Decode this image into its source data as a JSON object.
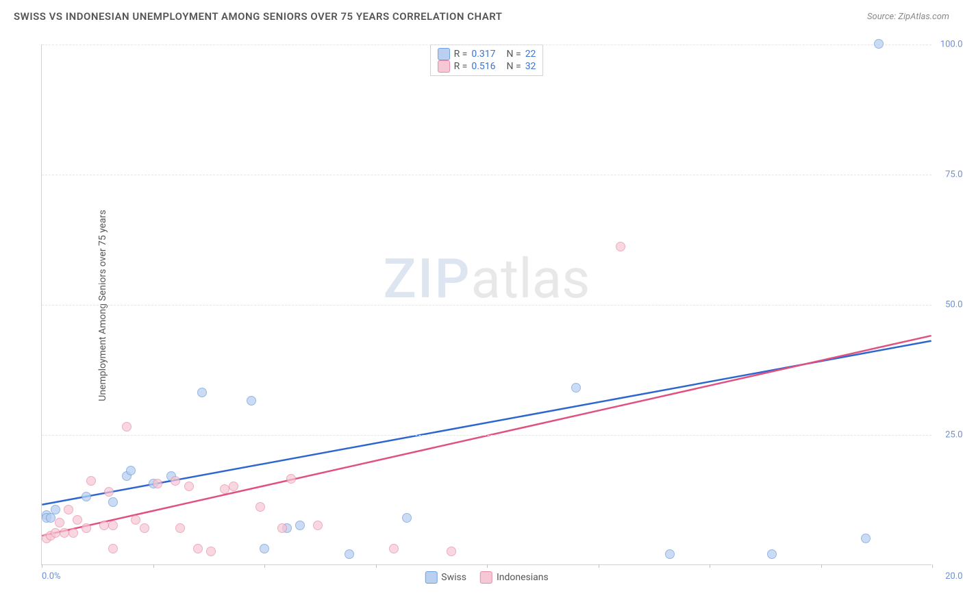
{
  "header": {
    "title": "SWISS VS INDONESIAN UNEMPLOYMENT AMONG SENIORS OVER 75 YEARS CORRELATION CHART",
    "source": "Source: ZipAtlas.com"
  },
  "watermark": {
    "part1": "ZIP",
    "part2": "atlas"
  },
  "chart": {
    "type": "scatter",
    "y_axis_label": "Unemployment Among Seniors over 75 years",
    "label_fontsize": 14,
    "background_color": "#ffffff",
    "grid_color": "#e5e5e5",
    "axis_color": "#d0d0d0",
    "tick_label_color": "#6a8fd8",
    "xlim": [
      0,
      20
    ],
    "ylim": [
      0,
      100
    ],
    "x_ticks": [
      0,
      2.5,
      5,
      7.5,
      10,
      12.5,
      15,
      17.5,
      20
    ],
    "x_tick_labels": {
      "0": "0.0%",
      "20": "20.0%"
    },
    "y_ticks": [
      25,
      50,
      75,
      100
    ],
    "y_tick_labels": {
      "25": "25.0%",
      "50": "50.0%",
      "75": "75.0%",
      "100": "100.0%"
    },
    "series": [
      {
        "name": "Swiss",
        "fill_color": "#b9d0f0",
        "stroke_color": "#6f9fe0",
        "line_color": "#2e66d0",
        "marker_radius": 7,
        "marker_opacity": 0.75,
        "stats": {
          "R": "0.317",
          "N": "22"
        },
        "trend": {
          "x1": 0,
          "y1": 11.5,
          "x2": 20,
          "y2": 43
        },
        "points": [
          {
            "x": 0.1,
            "y": 9.5
          },
          {
            "x": 0.1,
            "y": 9.0
          },
          {
            "x": 0.2,
            "y": 9.0
          },
          {
            "x": 0.3,
            "y": 10.5
          },
          {
            "x": 1.0,
            "y": 13.0
          },
          {
            "x": 1.6,
            "y": 12.0
          },
          {
            "x": 1.9,
            "y": 17.0
          },
          {
            "x": 2.0,
            "y": 18.0
          },
          {
            "x": 2.5,
            "y": 15.5
          },
          {
            "x": 2.9,
            "y": 17.0
          },
          {
            "x": 3.6,
            "y": 33.0
          },
          {
            "x": 4.7,
            "y": 31.5
          },
          {
            "x": 5.0,
            "y": 3.0
          },
          {
            "x": 5.5,
            "y": 7.0
          },
          {
            "x": 5.8,
            "y": 7.5
          },
          {
            "x": 6.9,
            "y": 2.0
          },
          {
            "x": 8.2,
            "y": 9.0
          },
          {
            "x": 12.0,
            "y": 34.0
          },
          {
            "x": 14.1,
            "y": 2.0
          },
          {
            "x": 16.4,
            "y": 2.0
          },
          {
            "x": 18.5,
            "y": 5.0
          },
          {
            "x": 18.8,
            "y": 100.0
          }
        ]
      },
      {
        "name": "Indonesians",
        "fill_color": "#f6c7d4",
        "stroke_color": "#e88aa5",
        "line_color": "#e05080",
        "marker_radius": 7,
        "marker_opacity": 0.7,
        "stats": {
          "R": "0.516",
          "N": "32"
        },
        "trend": {
          "x1": 0,
          "y1": 5.5,
          "x2": 20,
          "y2": 44
        },
        "points": [
          {
            "x": 0.1,
            "y": 5.0
          },
          {
            "x": 0.2,
            "y": 5.5
          },
          {
            "x": 0.3,
            "y": 6.0
          },
          {
            "x": 0.4,
            "y": 8.0
          },
          {
            "x": 0.5,
            "y": 6.0
          },
          {
            "x": 0.6,
            "y": 10.5
          },
          {
            "x": 0.7,
            "y": 6.0
          },
          {
            "x": 0.8,
            "y": 8.5
          },
          {
            "x": 1.0,
            "y": 7.0
          },
          {
            "x": 1.1,
            "y": 16.0
          },
          {
            "x": 1.4,
            "y": 7.5
          },
          {
            "x": 1.5,
            "y": 14.0
          },
          {
            "x": 1.6,
            "y": 7.5
          },
          {
            "x": 1.6,
            "y": 3.0
          },
          {
            "x": 1.9,
            "y": 26.5
          },
          {
            "x": 2.1,
            "y": 8.5
          },
          {
            "x": 2.3,
            "y": 7.0
          },
          {
            "x": 2.6,
            "y": 15.5
          },
          {
            "x": 3.0,
            "y": 16.0
          },
          {
            "x": 3.1,
            "y": 7.0
          },
          {
            "x": 3.3,
            "y": 15.0
          },
          {
            "x": 3.5,
            "y": 3.0
          },
          {
            "x": 3.8,
            "y": 2.5
          },
          {
            "x": 4.1,
            "y": 14.5
          },
          {
            "x": 4.3,
            "y": 15.0
          },
          {
            "x": 4.9,
            "y": 11.0
          },
          {
            "x": 5.4,
            "y": 7.0
          },
          {
            "x": 5.6,
            "y": 16.5
          },
          {
            "x": 6.2,
            "y": 7.5
          },
          {
            "x": 7.9,
            "y": 3.0
          },
          {
            "x": 9.2,
            "y": 2.5
          },
          {
            "x": 13.0,
            "y": 61.0
          }
        ]
      }
    ],
    "legend_labels": [
      "Swiss",
      "Indonesians"
    ]
  }
}
